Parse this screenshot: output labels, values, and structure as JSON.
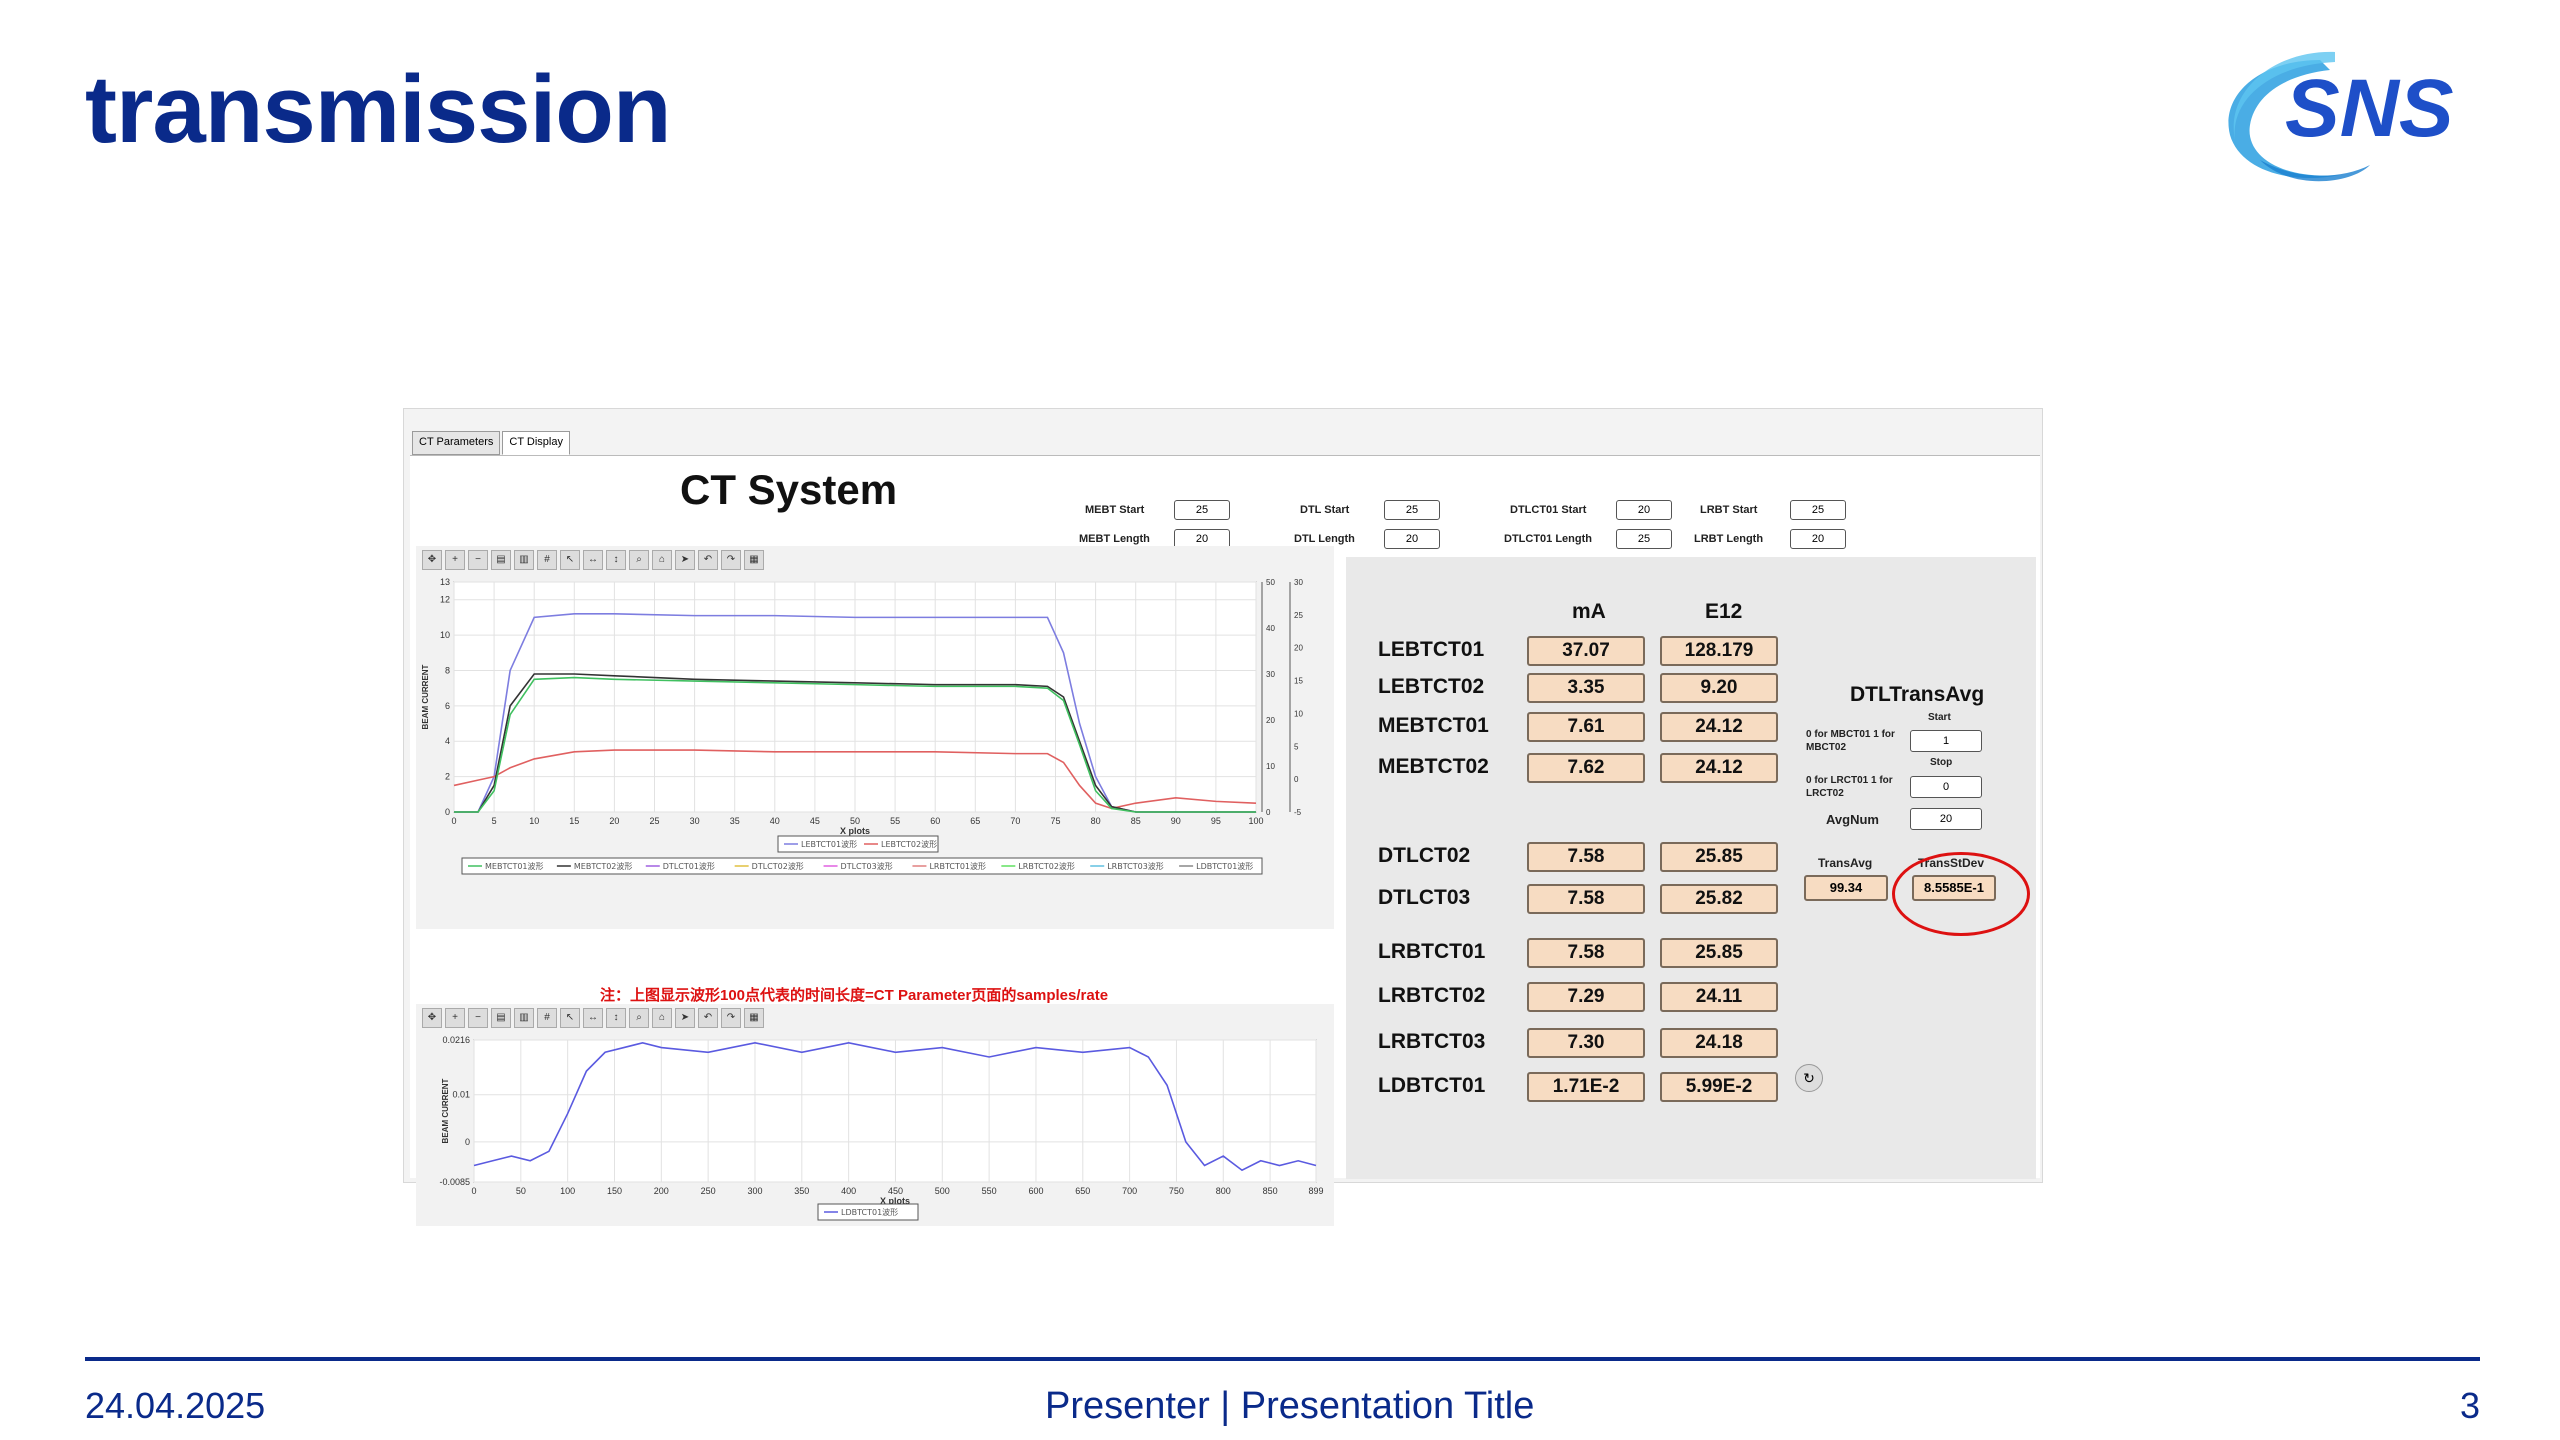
{
  "slide": {
    "title": "transmission",
    "logo_text": "SNS",
    "footer_date": "24.04.2025",
    "footer_center": "Presenter | Presentation Title",
    "page_number": "3"
  },
  "app": {
    "tabs": [
      {
        "label": "CT Parameters"
      },
      {
        "label": "CT Display"
      }
    ],
    "title": "CT System",
    "params": [
      {
        "label": "MEBT Start",
        "value": "25"
      },
      {
        "label": "MEBT Length",
        "value": "20"
      },
      {
        "label": "DTL Start",
        "value": "25"
      },
      {
        "label": "DTL Length",
        "value": "20"
      },
      {
        "label": "DTLCT01 Start",
        "value": "20"
      },
      {
        "label": "DTLCT01 Length",
        "value": "25"
      },
      {
        "label": "LRBT Start",
        "value": "25"
      },
      {
        "label": "LRBT Length",
        "value": "20"
      }
    ],
    "note": "注：上图显示波形100点代表的时间长度=CT Parameter页面的samples/rate",
    "table": {
      "headers": [
        "mA",
        "E12"
      ],
      "rows": [
        {
          "name": "LEBTCT01",
          "ma": "37.07",
          "e12": "128.179"
        },
        {
          "name": "LEBTCT02",
          "ma": "3.35",
          "e12": "9.20"
        },
        {
          "name": "MEBTCT01",
          "ma": "7.61",
          "e12": "24.12"
        },
        {
          "name": "MEBTCT02",
          "ma": "7.62",
          "e12": "24.12"
        },
        {
          "name": "DTLCT02",
          "ma": "7.58",
          "e12": "25.85"
        },
        {
          "name": "DTLCT03",
          "ma": "7.58",
          "e12": "25.82"
        },
        {
          "name": "LRBTCT01",
          "ma": "7.58",
          "e12": "25.85"
        },
        {
          "name": "LRBTCT02",
          "ma": "7.29",
          "e12": "24.11"
        },
        {
          "name": "LRBTCT03",
          "ma": "7.30",
          "e12": "24.18"
        },
        {
          "name": "LDBTCT01",
          "ma": "1.71E-2",
          "e12": "5.99E-2"
        }
      ]
    },
    "dtl_trans": {
      "title": "DTLTransAvg",
      "start_label": "Start",
      "start_hint": "0 for MBCT01 1 for MBCT02",
      "start_value": "1",
      "stop_label": "Stop",
      "stop_hint": "0 for LRCT01 1 for LRCT02",
      "stop_value": "0",
      "avgnum_label": "AvgNum",
      "avgnum_value": "20",
      "transavg_label": "TransAvg",
      "transavg_value": "99.34",
      "transstddev_label": "TransStDev",
      "transstddev_value": "8.5585E-1"
    }
  },
  "chart_data": [
    {
      "type": "line",
      "ylabel": "BEAM CURRENT",
      "xlabel": "X plots",
      "xlim": [
        0,
        100
      ],
      "ylim": [
        0,
        13
      ],
      "x_ticks": [
        0,
        5,
        10,
        15,
        20,
        25,
        30,
        35,
        40,
        45,
        50,
        55,
        60,
        65,
        70,
        75,
        80,
        85,
        90,
        95,
        100
      ],
      "y_ticks": [
        0,
        2,
        4,
        6,
        8,
        10,
        12,
        13
      ],
      "right_axis1_ticks": [
        0,
        10,
        20,
        30,
        40,
        50
      ],
      "right_axis2_ticks": [
        -5,
        0,
        5,
        10,
        15,
        20,
        25,
        30
      ],
      "legend_main": [
        "LEBTCT01波形",
        "LEBTCT02波形"
      ],
      "legend_secondary": [
        "MEBTCT01波形",
        "MEBTCT02波形",
        "DTLCT01波形",
        "DTLCT02波形",
        "DTLCT03波形",
        "LRBTCT01波形",
        "LRBTCT02波形",
        "LRBTCT03波形",
        "LDBTCT01波形"
      ],
      "series": [
        {
          "color": "#7d7de0",
          "x": [
            0,
            3,
            5,
            7,
            10,
            15,
            20,
            30,
            40,
            50,
            60,
            70,
            74,
            76,
            78,
            80,
            82,
            85,
            90,
            95,
            100
          ],
          "y": [
            0,
            0,
            2,
            8,
            11,
            11.2,
            11.2,
            11.1,
            11.1,
            11,
            11,
            11,
            11,
            9,
            5,
            2,
            0.3,
            0,
            0,
            0,
            0
          ]
        },
        {
          "color": "#e06060",
          "x": [
            0,
            3,
            5,
            7,
            10,
            15,
            20,
            30,
            40,
            50,
            60,
            70,
            74,
            76,
            78,
            80,
            82,
            85,
            90,
            95,
            100
          ],
          "y": [
            1.5,
            1.8,
            2,
            2.5,
            3,
            3.4,
            3.5,
            3.5,
            3.4,
            3.4,
            3.4,
            3.3,
            3.3,
            2.8,
            1.5,
            0.5,
            0.2,
            0.5,
            0.8,
            0.6,
            0.5
          ]
        },
        {
          "color": "#333333",
          "x": [
            0,
            3,
            5,
            7,
            10,
            15,
            20,
            30,
            40,
            50,
            60,
            70,
            74,
            76,
            78,
            80,
            82,
            85,
            90,
            95,
            100
          ],
          "y": [
            0,
            0,
            1.5,
            6,
            7.8,
            7.8,
            7.7,
            7.5,
            7.4,
            7.3,
            7.2,
            7.2,
            7.1,
            6.5,
            4,
            1.5,
            0.3,
            0,
            0,
            0,
            0
          ]
        },
        {
          "color": "#40c060",
          "x": [
            0,
            3,
            5,
            7,
            10,
            15,
            20,
            30,
            40,
            50,
            60,
            70,
            74,
            76,
            78,
            80,
            82,
            85,
            90,
            95,
            100
          ],
          "y": [
            0,
            0,
            1.2,
            5.5,
            7.5,
            7.6,
            7.5,
            7.4,
            7.3,
            7.2,
            7.1,
            7.1,
            7,
            6.3,
            3.8,
            1.2,
            0.2,
            0,
            0,
            0,
            0
          ]
        }
      ]
    },
    {
      "type": "line",
      "ylabel": "BEAM CURRENT",
      "xlabel": "X plots",
      "xlim": [
        0,
        899
      ],
      "ylim": [
        -0.0085,
        0.0216
      ],
      "x_ticks": [
        0,
        50,
        100,
        150,
        200,
        250,
        300,
        350,
        400,
        450,
        500,
        550,
        600,
        650,
        700,
        750,
        800,
        850,
        899
      ],
      "y_ticks": [
        -0.0085,
        0,
        0.01,
        0.0216
      ],
      "legend_main": [
        "LDBTCT01波形"
      ],
      "series": [
        {
          "color": "#5a5ae0",
          "x": [
            0,
            20,
            40,
            60,
            80,
            100,
            120,
            140,
            160,
            180,
            200,
            250,
            300,
            350,
            400,
            450,
            500,
            550,
            600,
            650,
            700,
            720,
            740,
            760,
            780,
            800,
            820,
            840,
            860,
            880,
            899
          ],
          "y": [
            -0.005,
            -0.004,
            -0.003,
            -0.004,
            -0.002,
            0.006,
            0.015,
            0.019,
            0.02,
            0.021,
            0.02,
            0.019,
            0.021,
            0.019,
            0.021,
            0.019,
            0.02,
            0.018,
            0.02,
            0.019,
            0.02,
            0.018,
            0.012,
            0.0,
            -0.005,
            -0.003,
            -0.006,
            -0.004,
            -0.005,
            -0.004,
            -0.005
          ]
        }
      ]
    }
  ]
}
